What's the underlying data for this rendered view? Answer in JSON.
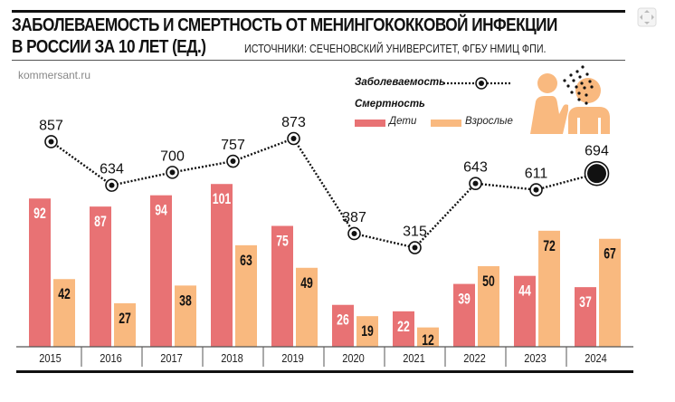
{
  "header": {
    "title_line1": "ЗАБОЛЕВАЕМОСТЬ И СМЕРТНОСТЬ ОТ МЕНИНГОКОККОВОЙ ИНФЕКЦИИ",
    "title_line2": "В РОССИИ ЗА 10 ЛЕТ (ЕД.)",
    "sources": "ИСТОЧНИКИ: СЕЧЕНОВСКИЙ УНИВЕРСИТЕТ, ФГБУ НМИЦ ФПИ.",
    "site": "kommersant.ru"
  },
  "icons": {
    "illustration": "people-cough-droplets-icon",
    "corner": "expand-icon"
  },
  "colors": {
    "children": "#E87274",
    "adults": "#F9B97F",
    "line": "#111111",
    "illustration": "#F9B97F"
  },
  "legend": {
    "incidence_label": "Заболеваемость",
    "mortality_label": "Смертность",
    "children_label": "Дети",
    "adults_label": "Взрослые"
  },
  "chart_data": {
    "type": "bar",
    "title": "ЗАБОЛЕВАЕМОСТЬ И СМЕРТНОСТЬ ОТ МЕНИНГОКОККОВОЙ ИНФЕКЦИИ В РОССИИ ЗА 10 ЛЕТ (ЕД.)",
    "xlabel": "",
    "ylabel": "",
    "categories": [
      "2015",
      "2016",
      "2017",
      "2018",
      "2019",
      "2020",
      "2021",
      "2022",
      "2023",
      "2024"
    ],
    "series": [
      {
        "name": "Дети",
        "group": "Смертность",
        "type": "bar",
        "values": [
          92,
          87,
          94,
          101,
          75,
          26,
          22,
          39,
          44,
          37
        ]
      },
      {
        "name": "Взрослые",
        "group": "Смертность",
        "type": "bar",
        "values": [
          42,
          27,
          38,
          63,
          49,
          19,
          12,
          50,
          72,
          67
        ]
      },
      {
        "name": "Заболеваемость",
        "type": "line",
        "values": [
          857,
          634,
          700,
          757,
          873,
          387,
          315,
          643,
          611,
          694
        ]
      }
    ],
    "bar_ylim": [
      0,
      101
    ],
    "line_ylim": [
      315,
      873
    ],
    "grid": false,
    "legend": "top-right"
  }
}
